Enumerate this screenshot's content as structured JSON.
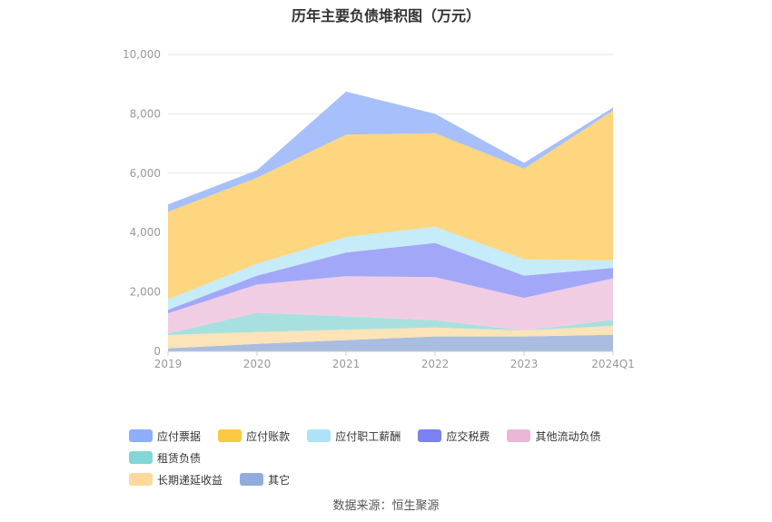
{
  "chart_data": {
    "type": "area",
    "title": "历年主要负债堆积图（万元）",
    "categories": [
      "2019",
      "2020",
      "2021",
      "2022",
      "2023",
      "2024Q1"
    ],
    "yticks": [
      "0",
      "2,000",
      "4,000",
      "6,000",
      "8,000",
      "10,000"
    ],
    "ylim": [
      0,
      10000
    ],
    "stacked": true,
    "grid": true,
    "legend_position": "bottom-left",
    "series": [
      {
        "name": "其它",
        "color": "#a9bde0",
        "values": [
          100,
          250,
          380,
          500,
          500,
          560
        ]
      },
      {
        "name": "长期递延收益",
        "color": "#fce3b8",
        "values": [
          450,
          400,
          350,
          300,
          200,
          300
        ]
      },
      {
        "name": "租赁负债",
        "color": "#a8e0df",
        "values": [
          50,
          650,
          450,
          250,
          0,
          200
        ]
      },
      {
        "name": "其他流动负债",
        "color": "#f1cde4",
        "values": [
          680,
          950,
          1350,
          1450,
          1100,
          1400
        ]
      },
      {
        "name": "应交税费",
        "color": "#a3a7f7",
        "values": [
          120,
          300,
          800,
          1150,
          750,
          350
        ]
      },
      {
        "name": "应付职工薪酬",
        "color": "#c6ebf9",
        "values": [
          350,
          400,
          520,
          550,
          550,
          250
        ]
      },
      {
        "name": "应付账款",
        "color": "#fdd67f",
        "values": [
          2950,
          2900,
          3450,
          3150,
          3050,
          5050
        ]
      },
      {
        "name": "应付票据",
        "color": "#a7bffb",
        "values": [
          250,
          250,
          1450,
          650,
          200,
          100
        ]
      }
    ]
  },
  "legend": {
    "items": [
      {
        "label": "应付票据",
        "color": "#8eaefb"
      },
      {
        "label": "应付账款",
        "color": "#fbc843"
      },
      {
        "label": "应付职工薪酬",
        "color": "#aee3f7"
      },
      {
        "label": "应交税费",
        "color": "#7b80f3"
      },
      {
        "label": "其他流动负债",
        "color": "#ebb7d8"
      },
      {
        "label": "租赁负债",
        "color": "#85d6d6"
      },
      {
        "label": "长期递延收益",
        "color": "#fdd99a"
      },
      {
        "label": "其它",
        "color": "#90acdb"
      }
    ]
  },
  "source": "数据来源：恒生聚源"
}
